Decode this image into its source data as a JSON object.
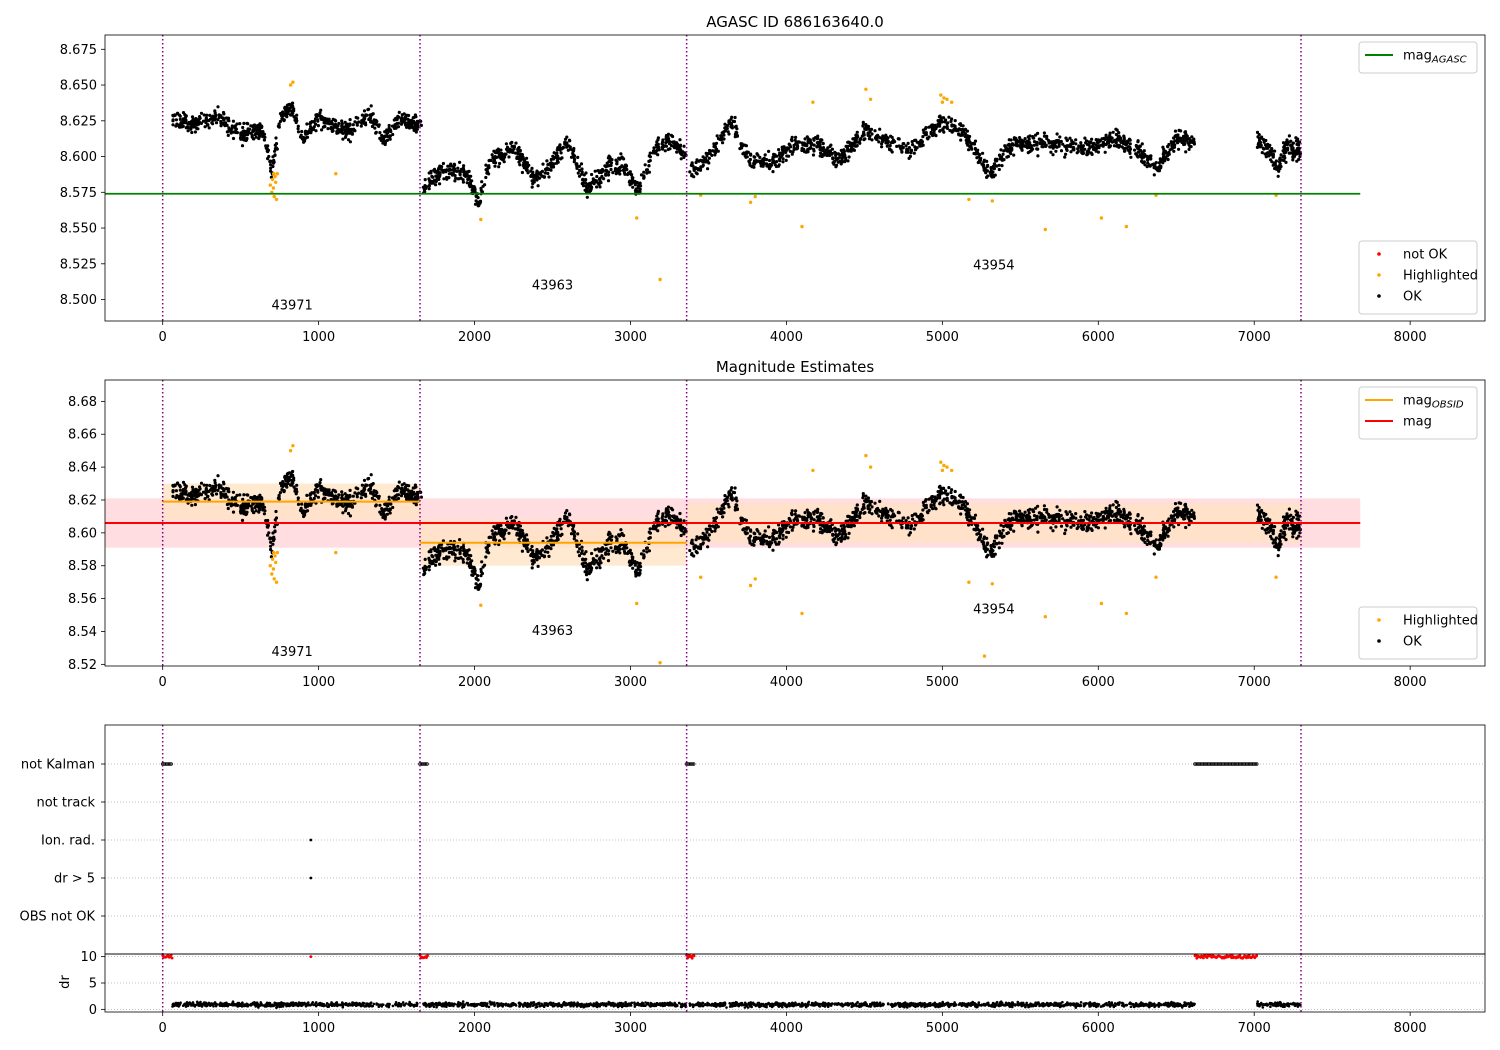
{
  "figure": {
    "title": "AGASC ID 686163640.0",
    "subtitle": "Magnitude Estimates"
  },
  "colors": {
    "ok": "#000000",
    "highlighted": "#ffa500",
    "not_ok": "#ff0000",
    "mag_agasc": "#008000",
    "mag_obsid": "#ffa500",
    "mag": "#ff0000",
    "obs_boundary": "#800080",
    "band_mag": "#ffdde0",
    "band_obsid": "#ffe3c2"
  },
  "chart_data": [
    {
      "type": "scatter",
      "title": "AGASC ID 686163640.0",
      "xlim": [
        -370,
        8480
      ],
      "ylim": [
        8.485,
        8.685
      ],
      "xticks": [
        0,
        1000,
        2000,
        3000,
        4000,
        5000,
        6000,
        7000,
        8000
      ],
      "xtick_labels": [
        "0",
        "1000",
        "2000",
        "3000",
        "4000",
        "5000",
        "6000",
        "7000",
        "8000"
      ],
      "yticks": [
        8.5,
        8.525,
        8.55,
        8.575,
        8.6,
        8.625,
        8.65,
        8.675
      ],
      "ytick_labels": [
        "8.500",
        "8.525",
        "8.550",
        "8.575",
        "8.600",
        "8.625",
        "8.650",
        "8.675"
      ],
      "obs_boundaries": [
        0,
        1650,
        3360,
        7300
      ],
      "obs_labels": [
        {
          "text": "43971",
          "x": 830,
          "y": 8.493
        },
        {
          "text": "43963",
          "x": 2500,
          "y": 8.507
        },
        {
          "text": "43954",
          "x": 5330,
          "y": 8.521
        }
      ],
      "hlines": [
        {
          "name": "mag_AGASC",
          "y": 8.574,
          "x": [
            -370,
            7680
          ],
          "color_key": "mag_agasc"
        }
      ],
      "legend_upper": {
        "position": "upper right",
        "entries": [
          {
            "label": "mag",
            "sub": "AGASC",
            "kind": "line",
            "color_key": "mag_agasc"
          }
        ]
      },
      "legend_lower": {
        "position": "lower right",
        "entries": [
          {
            "label": "not OK",
            "kind": "dot",
            "color_key": "not_ok"
          },
          {
            "label": "Highlighted",
            "kind": "dot",
            "color_key": "highlighted"
          },
          {
            "label": "OK",
            "kind": "dot",
            "color_key": "ok"
          }
        ]
      },
      "series": [
        {
          "name": "OK",
          "color_key": "ok",
          "segments": [
            {
              "x": [
                60,
                1660
              ],
              "knots": [
                [
                  60,
                  8.625
                ],
                [
                  200,
                  8.623
                ],
                [
                  350,
                  8.628
                ],
                [
                  500,
                  8.615
                ],
                [
                  640,
                  8.62
                ],
                [
                  700,
                  8.59
                ],
                [
                  760,
                  8.628
                ],
                [
                  830,
                  8.633
                ],
                [
                  900,
                  8.612
                ],
                [
                  1000,
                  8.628
                ],
                [
                  1100,
                  8.62
                ],
                [
                  1200,
                  8.618
                ],
                [
                  1320,
                  8.63
                ],
                [
                  1420,
                  8.612
                ],
                [
                  1520,
                  8.625
                ],
                [
                  1650,
                  8.622
                ]
              ],
              "noise": 0.006,
              "n": 700
            },
            {
              "x": [
                1670,
                3360
              ],
              "knots": [
                [
                  1670,
                  8.578
                ],
                [
                  1800,
                  8.59
                ],
                [
                  1950,
                  8.588
                ],
                [
                  2030,
                  8.568
                ],
                [
                  2100,
                  8.598
                ],
                [
                  2250,
                  8.605
                ],
                [
                  2380,
                  8.585
                ],
                [
                  2480,
                  8.592
                ],
                [
                  2600,
                  8.61
                ],
                [
                  2720,
                  8.578
                ],
                [
                  2850,
                  8.592
                ],
                [
                  2960,
                  8.595
                ],
                [
                  3050,
                  8.575
                ],
                [
                  3150,
                  8.605
                ],
                [
                  3250,
                  8.612
                ],
                [
                  3360,
                  8.6
                ]
              ],
              "noise": 0.006,
              "n": 700
            },
            {
              "x": [
                3380,
                6620
              ],
              "knots": [
                [
                  3380,
                  8.59
                ],
                [
                  3500,
                  8.6
                ],
                [
                  3650,
                  8.625
                ],
                [
                  3760,
                  8.598
                ],
                [
                  3900,
                  8.595
                ],
                [
                  4050,
                  8.608
                ],
                [
                  4200,
                  8.608
                ],
                [
                  4350,
                  8.598
                ],
                [
                  4500,
                  8.618
                ],
                [
                  4650,
                  8.61
                ],
                [
                  4800,
                  8.605
                ],
                [
                  5000,
                  8.625
                ],
                [
                  5150,
                  8.615
                ],
                [
                  5300,
                  8.588
                ],
                [
                  5450,
                  8.608
                ],
                [
                  5700,
                  8.61
                ],
                [
                  5900,
                  8.605
                ],
                [
                  6100,
                  8.612
                ],
                [
                  6250,
                  8.605
                ],
                [
                  6380,
                  8.592
                ],
                [
                  6500,
                  8.612
                ],
                [
                  6620,
                  8.61
                ]
              ],
              "noise": 0.006,
              "n": 1300
            },
            {
              "x": [
                7020,
                7300
              ],
              "knots": [
                [
                  7020,
                  8.61
                ],
                [
                  7100,
                  8.605
                ],
                [
                  7150,
                  8.59
                ],
                [
                  7200,
                  8.605
                ],
                [
                  7300,
                  8.605
                ]
              ],
              "noise": 0.007,
              "n": 150
            }
          ]
        },
        {
          "name": "Highlighted",
          "color_key": "highlighted",
          "points": [
            [
              690,
              8.58
            ],
            [
              700,
              8.575
            ],
            [
              705,
              8.584
            ],
            [
              710,
              8.578
            ],
            [
              715,
              8.572
            ],
            [
              720,
              8.586
            ],
            [
              725,
              8.582
            ],
            [
              730,
              8.57
            ],
            [
              735,
              8.588
            ],
            [
              712,
              8.588
            ],
            [
              820,
              8.65
            ],
            [
              835,
              8.652
            ],
            [
              1110,
              8.588
            ],
            [
              2040,
              8.556
            ],
            [
              3040,
              8.557
            ],
            [
              3190,
              8.514
            ],
            [
              3450,
              8.573
            ],
            [
              3770,
              8.568
            ],
            [
              3800,
              8.572
            ],
            [
              4100,
              8.551
            ],
            [
              4170,
              8.638
            ],
            [
              4510,
              8.647
            ],
            [
              4540,
              8.64
            ],
            [
              4990,
              8.643
            ],
            [
              5000,
              8.638
            ],
            [
              5010,
              8.641
            ],
            [
              5030,
              8.64
            ],
            [
              5060,
              8.638
            ],
            [
              5170,
              8.57
            ],
            [
              5320,
              8.569
            ],
            [
              5660,
              8.549
            ],
            [
              6020,
              8.557
            ],
            [
              6180,
              8.551
            ],
            [
              6370,
              8.573
            ],
            [
              7140,
              8.573
            ]
          ]
        }
      ]
    },
    {
      "type": "scatter",
      "title": "Magnitude Estimates",
      "xlim": [
        -370,
        8480
      ],
      "ylim": [
        8.519,
        8.693
      ],
      "xticks": [
        0,
        1000,
        2000,
        3000,
        4000,
        5000,
        6000,
        7000,
        8000
      ],
      "xtick_labels": [
        "0",
        "1000",
        "2000",
        "3000",
        "4000",
        "5000",
        "6000",
        "7000",
        "8000"
      ],
      "yticks": [
        8.52,
        8.54,
        8.56,
        8.58,
        8.6,
        8.62,
        8.64,
        8.66,
        8.68
      ],
      "ytick_labels": [
        "8.52",
        "8.54",
        "8.56",
        "8.58",
        "8.60",
        "8.62",
        "8.64",
        "8.66",
        "8.68"
      ],
      "obs_boundaries": [
        0,
        1650,
        3360,
        7300
      ],
      "obs_labels": [
        {
          "text": "43971",
          "x": 830,
          "y": 8.525
        },
        {
          "text": "43963",
          "x": 2500,
          "y": 8.538
        },
        {
          "text": "43954",
          "x": 5330,
          "y": 8.551
        }
      ],
      "bands": [
        {
          "name": "mag",
          "x": [
            -370,
            7680
          ],
          "y": [
            8.591,
            8.621
          ],
          "color_key": "band_mag"
        },
        {
          "name": "mag_OBSID 43971",
          "x": [
            0,
            1650
          ],
          "y": [
            8.608,
            8.63
          ],
          "color_key": "band_obsid"
        },
        {
          "name": "mag_OBSID 43963",
          "x": [
            1650,
            3360
          ],
          "y": [
            8.58,
            8.608
          ],
          "color_key": "band_obsid"
        },
        {
          "name": "mag_OBSID 43954",
          "x": [
            3360,
            7300
          ],
          "y": [
            8.594,
            8.618
          ],
          "color_key": "band_obsid"
        }
      ],
      "hlines": [
        {
          "name": "mag_OBSID 43971",
          "y": 8.619,
          "x": [
            0,
            1650
          ],
          "color_key": "mag_obsid"
        },
        {
          "name": "mag_OBSID 43963",
          "y": 8.594,
          "x": [
            1650,
            3360
          ],
          "color_key": "mag_obsid"
        },
        {
          "name": "mag_OBSID 43954",
          "y": 8.606,
          "x": [
            3360,
            7300
          ],
          "color_key": "mag_obsid"
        },
        {
          "name": "mag",
          "y": 8.606,
          "x": [
            -370,
            7680
          ],
          "color_key": "mag"
        }
      ],
      "legend_upper": {
        "position": "upper right",
        "entries": [
          {
            "label": "mag",
            "sub": "OBSID",
            "kind": "line",
            "color_key": "mag_obsid"
          },
          {
            "label": "mag",
            "kind": "line",
            "color_key": "mag"
          }
        ]
      },
      "legend_lower": {
        "position": "lower right",
        "entries": [
          {
            "label": "Highlighted",
            "kind": "dot",
            "color_key": "highlighted"
          },
          {
            "label": "OK",
            "kind": "dot",
            "color_key": "ok"
          }
        ]
      },
      "series": [
        {
          "name": "OK",
          "color_key": "ok",
          "same_as_panel": 0
        },
        {
          "name": "Highlighted",
          "color_key": "highlighted",
          "points": [
            [
              690,
              8.58
            ],
            [
              700,
              8.575
            ],
            [
              705,
              8.584
            ],
            [
              710,
              8.578
            ],
            [
              715,
              8.572
            ],
            [
              720,
              8.586
            ],
            [
              725,
              8.582
            ],
            [
              730,
              8.57
            ],
            [
              735,
              8.588
            ],
            [
              712,
              8.588
            ],
            [
              820,
              8.65
            ],
            [
              835,
              8.653
            ],
            [
              1110,
              8.588
            ],
            [
              2040,
              8.556
            ],
            [
              3040,
              8.557
            ],
            [
              3190,
              8.521
            ],
            [
              3450,
              8.573
            ],
            [
              3770,
              8.568
            ],
            [
              3800,
              8.572
            ],
            [
              4100,
              8.551
            ],
            [
              4170,
              8.638
            ],
            [
              4510,
              8.647
            ],
            [
              4540,
              8.64
            ],
            [
              4990,
              8.643
            ],
            [
              5000,
              8.638
            ],
            [
              5010,
              8.641
            ],
            [
              5030,
              8.64
            ],
            [
              5060,
              8.638
            ],
            [
              5170,
              8.57
            ],
            [
              5270,
              8.525
            ],
            [
              5320,
              8.569
            ],
            [
              5660,
              8.549
            ],
            [
              6020,
              8.557
            ],
            [
              6180,
              8.551
            ],
            [
              6370,
              8.573
            ],
            [
              7140,
              8.573
            ]
          ]
        }
      ]
    },
    {
      "type": "scatter",
      "title": "",
      "xlim": [
        -370,
        8480
      ],
      "obs_boundaries": [
        0,
        1650,
        3360,
        7300
      ],
      "categories": [
        "not Kalman",
        "not track",
        "Ion. rad.",
        "dr > 5",
        "OBS not OK"
      ],
      "flags": [
        {
          "category": "not Kalman",
          "x_ranges": [
            [
              0,
              60
            ],
            [
              1650,
              1700
            ],
            [
              3360,
              3410
            ],
            [
              6620,
              7020
            ]
          ]
        },
        {
          "category": "Ion. rad.",
          "points": [
            950
          ]
        },
        {
          "category": "dr > 5",
          "points": [
            950
          ]
        }
      ]
    },
    {
      "type": "scatter",
      "title": "",
      "ylabel": "dr",
      "xlim": [
        -370,
        8480
      ],
      "ylim": [
        -0.5,
        10.5
      ],
      "xticks": [
        0,
        1000,
        2000,
        3000,
        4000,
        5000,
        6000,
        7000,
        8000
      ],
      "xtick_labels": [
        "0",
        "1000",
        "2000",
        "3000",
        "4000",
        "5000",
        "6000",
        "7000",
        "8000"
      ],
      "yticks": [
        0,
        5,
        10
      ],
      "ytick_labels": [
        "0",
        "5",
        "10"
      ],
      "obs_boundaries": [
        0,
        1650,
        3360,
        7300
      ],
      "dr_ok": {
        "color_key": "ok",
        "x_ranges": [
          [
            60,
            6620
          ],
          [
            7020,
            7300
          ]
        ],
        "gaps": [
          [
            1650,
            1670
          ],
          [
            3360,
            3380
          ]
        ],
        "level": 0.9,
        "noise": 0.8
      },
      "dr_capped": {
        "color_key": "not_ok",
        "value": 10,
        "x_ranges": [
          [
            0,
            60
          ],
          [
            1650,
            1700
          ],
          [
            3360,
            3410
          ],
          [
            6620,
            7020
          ]
        ],
        "points": [
          950
        ]
      }
    }
  ]
}
